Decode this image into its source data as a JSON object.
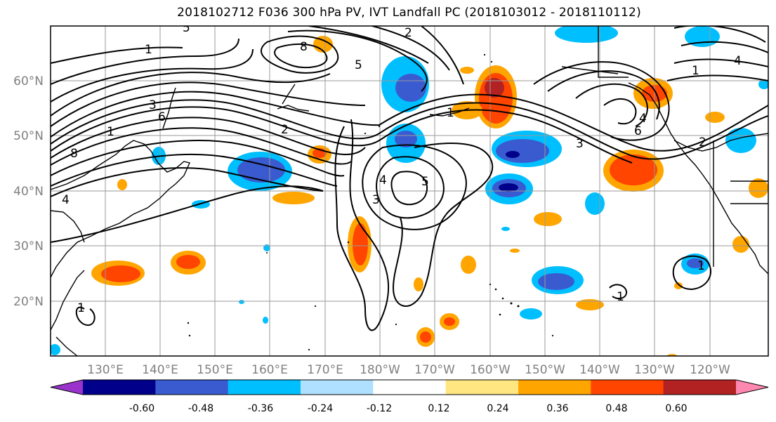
{
  "title": "2018102712 F036 300 hPa PV, IVT Landfall PC (2018103012 - 2018110112)",
  "lat_labels": [
    "60°N",
    "50°N",
    "40°N",
    "30°N",
    "20°N"
  ],
  "lon_labels": [
    "130°E",
    "140°E",
    "150°E",
    "160°E",
    "170°E",
    "180°W",
    "170°W",
    "160°W",
    "150°W",
    "140°W",
    "130°W",
    "120°W"
  ],
  "colorbar": {
    "colors": [
      "#9933cc",
      "#00008b",
      "#3a5bd0",
      "#00bfff",
      "#b0e0ff",
      "#ffffff",
      "#ffe680",
      "#ffa500",
      "#ff4500",
      "#b22222",
      "#ff88b0"
    ],
    "tick_labels": [
      "-0.60",
      "-0.48",
      "-0.36",
      "-0.24",
      "-0.12",
      "0.12",
      "0.24",
      "0.36",
      "0.48",
      "0.60"
    ]
  },
  "contour_labels": [
    "1",
    "1",
    "2",
    "3",
    "4",
    "5",
    "6",
    "8",
    "4",
    "5",
    "3",
    "2",
    "1",
    "6",
    "4",
    "3",
    "2",
    "1",
    "5",
    "4",
    "8",
    "1",
    "1",
    "1"
  ]
}
